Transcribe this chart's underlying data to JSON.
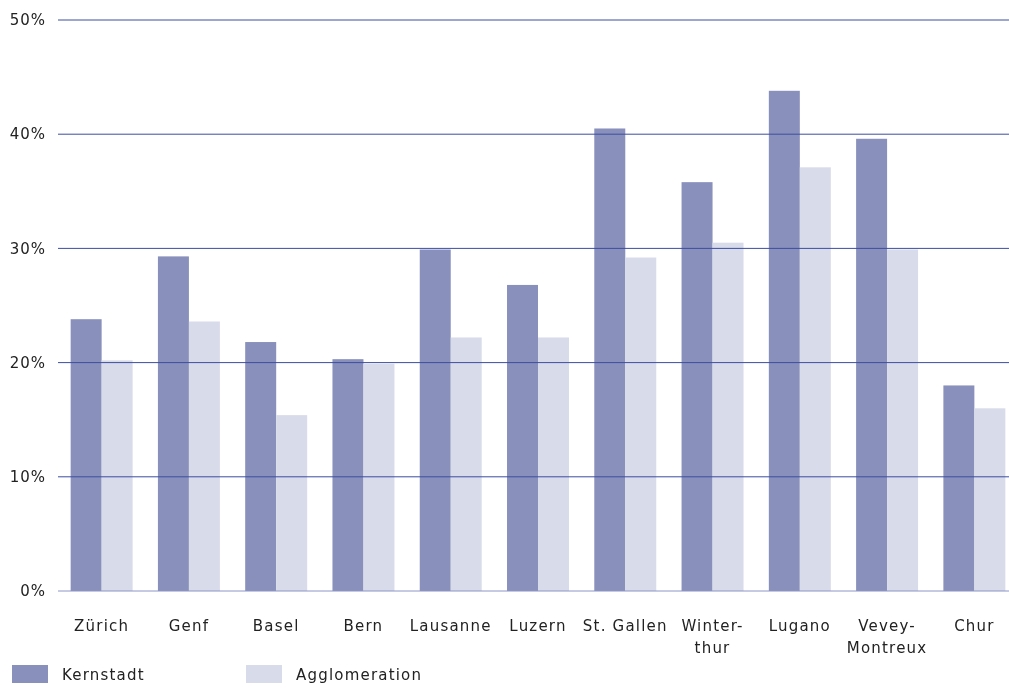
{
  "chart_data": {
    "type": "bar",
    "categories": [
      "Zürich",
      "Genf",
      "Basel",
      "Bern",
      "Lausanne",
      "Luzern",
      "St. Gallen",
      "Winter-\nthur",
      "Lugano",
      "Vevey-\nMontreux",
      "Chur"
    ],
    "series": [
      {
        "name": "Kernstadt",
        "color": "#8890bb",
        "values": [
          23.8,
          29.3,
          21.8,
          20.3,
          29.9,
          26.8,
          40.5,
          35.8,
          43.8,
          39.6,
          18.0
        ]
      },
      {
        "name": "Agglomeration",
        "color": "#d8dbe9",
        "values": [
          20.2,
          23.6,
          15.4,
          19.9,
          22.2,
          22.2,
          29.2,
          30.5,
          37.1,
          29.9,
          16.0
        ]
      }
    ],
    "ylim": [
      0,
      50
    ],
    "yticks": [
      {
        "value": 0,
        "label": "0%"
      },
      {
        "value": 10,
        "label": "10%"
      },
      {
        "value": 20,
        "label": "20%"
      },
      {
        "value": 30,
        "label": "30%"
      },
      {
        "value": 40,
        "label": "40%"
      },
      {
        "value": 50,
        "label": "50%"
      }
    ],
    "grid": "y",
    "legend": "bottom"
  }
}
